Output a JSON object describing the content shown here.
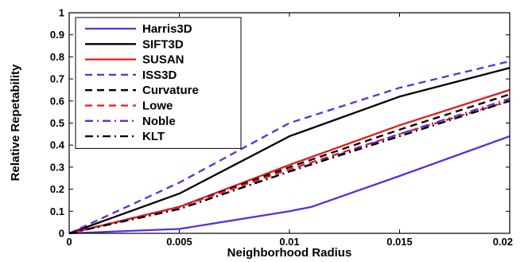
{
  "chart_data": {
    "type": "line",
    "xlabel": "Neighborhood Radius",
    "ylabel": "Relative Repetability",
    "xlim": [
      0,
      0.02
    ],
    "ylim": [
      0,
      1
    ],
    "grid": false,
    "legend_position": "top-left",
    "xticks": [
      "0",
      "0.005",
      "0.01",
      "0.015",
      "0.02"
    ],
    "yticks": [
      "0",
      "0.1",
      "0.2",
      "0.3",
      "0.4",
      "0.5",
      "0.6",
      "0.7",
      "0.8",
      "0.9",
      "1"
    ],
    "series": [
      {
        "name": "Harris3D",
        "color": "#5b2ee0",
        "dash": "solid",
        "x": [
          0,
          0.005,
          0.01,
          0.011,
          0.015,
          0.02
        ],
        "y": [
          0,
          0.02,
          0.1,
          0.12,
          0.26,
          0.44
        ]
      },
      {
        "name": "SIFT3D",
        "color": "#000000",
        "dash": "solid",
        "x": [
          0,
          0.005,
          0.01,
          0.015,
          0.02
        ],
        "y": [
          0,
          0.18,
          0.44,
          0.62,
          0.75
        ]
      },
      {
        "name": "SUSAN",
        "color": "#e31a1c",
        "dash": "solid",
        "x": [
          0,
          0.005,
          0.01,
          0.015,
          0.02
        ],
        "y": [
          0,
          0.12,
          0.31,
          0.49,
          0.65
        ]
      },
      {
        "name": "ISS3D",
        "color": "#5b2ee0",
        "dash": "dashed",
        "x": [
          0,
          0.005,
          0.01,
          0.015,
          0.02
        ],
        "y": [
          0,
          0.23,
          0.5,
          0.66,
          0.78
        ]
      },
      {
        "name": "Curvature",
        "color": "#000000",
        "dash": "dashed",
        "x": [
          0,
          0.005,
          0.01,
          0.015,
          0.02
        ],
        "y": [
          0,
          0.12,
          0.3,
          0.47,
          0.63
        ]
      },
      {
        "name": "Lowe",
        "color": "#e31a1c",
        "dash": "dashed",
        "x": [
          0,
          0.005,
          0.01,
          0.015,
          0.02
        ],
        "y": [
          0,
          0.12,
          0.29,
          0.45,
          0.6
        ]
      },
      {
        "name": "Noble",
        "color": "#5b2ee0",
        "dash": "dashdot",
        "x": [
          0,
          0.005,
          0.01,
          0.015,
          0.02
        ],
        "y": [
          0,
          0.11,
          0.28,
          0.45,
          0.61
        ]
      },
      {
        "name": "KLT",
        "color": "#000000",
        "dash": "dashdot",
        "x": [
          0,
          0.005,
          0.01,
          0.015,
          0.02
        ],
        "y": [
          0,
          0.11,
          0.28,
          0.44,
          0.6
        ]
      }
    ]
  }
}
